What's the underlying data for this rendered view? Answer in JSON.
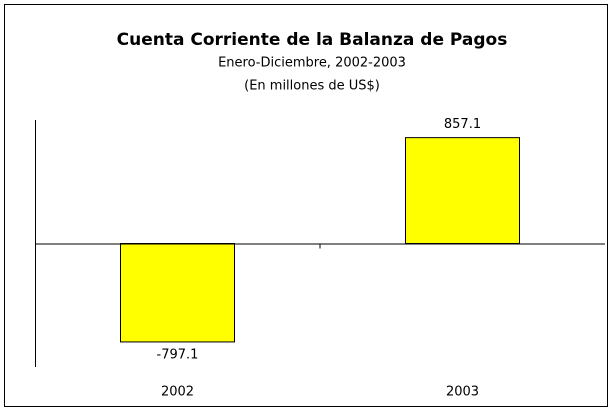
{
  "chart_data": {
    "type": "bar",
    "title": "Cuenta Corriente de la Balanza de Pagos",
    "subtitle": [
      "Enero-Diciembre, 2002-2003",
      "(En millones de US$)"
    ],
    "categories": [
      "2002",
      "2003"
    ],
    "values": [
      -797.1,
      857.1
    ],
    "color": "#ffff00",
    "ylim": [
      -1000,
      1000
    ],
    "grid": false
  }
}
